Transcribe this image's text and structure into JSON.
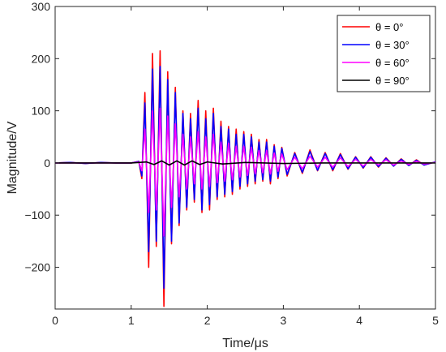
{
  "chart_data": {
    "type": "line",
    "title": "",
    "xlabel": "Time/μs",
    "ylabel": "Magnitude/V",
    "xlim": [
      0,
      5
    ],
    "ylim": [
      -280,
      300
    ],
    "xticks": [
      0,
      1,
      2,
      3,
      4,
      5
    ],
    "xtick_labels": [
      "0",
      "1",
      "2",
      "3",
      "4",
      "5"
    ],
    "yticks": [
      -200,
      -100,
      0,
      100,
      200,
      300
    ],
    "ytick_labels": [
      "−200",
      "−100",
      "0",
      "100",
      "200",
      "300"
    ],
    "grid": false,
    "legend_position": "top-right",
    "series": [
      {
        "name": "θ = 0°",
        "color": "#ff0000",
        "x": [
          0.0,
          0.2,
          0.4,
          0.6,
          0.8,
          1.0,
          1.1,
          1.14,
          1.18,
          1.23,
          1.28,
          1.33,
          1.38,
          1.43,
          1.48,
          1.53,
          1.58,
          1.63,
          1.68,
          1.73,
          1.78,
          1.83,
          1.88,
          1.93,
          1.98,
          2.03,
          2.08,
          2.13,
          2.18,
          2.23,
          2.28,
          2.33,
          2.38,
          2.43,
          2.48,
          2.53,
          2.58,
          2.63,
          2.68,
          2.73,
          2.78,
          2.83,
          2.88,
          2.93,
          2.98,
          3.05,
          3.15,
          3.25,
          3.35,
          3.45,
          3.55,
          3.65,
          3.75,
          3.85,
          3.95,
          4.05,
          4.15,
          4.25,
          4.35,
          4.45,
          4.55,
          4.65,
          4.75,
          4.85,
          5.0
        ],
        "y": [
          0,
          1,
          -1,
          1,
          0,
          0,
          3,
          -30,
          135,
          -200,
          210,
          -160,
          215,
          -275,
          175,
          -155,
          145,
          -120,
          100,
          -90,
          95,
          -75,
          120,
          -95,
          100,
          -90,
          105,
          -70,
          80,
          -65,
          70,
          -60,
          65,
          -50,
          60,
          -45,
          55,
          -40,
          45,
          -35,
          45,
          -40,
          35,
          -30,
          30,
          -25,
          20,
          -20,
          25,
          -15,
          20,
          -15,
          18,
          -12,
          12,
          -10,
          12,
          -8,
          10,
          -6,
          8,
          -5,
          6,
          -4,
          2
        ]
      },
      {
        "name": "θ = 30°",
        "color": "#0000ff",
        "x": [
          0.0,
          0.2,
          0.4,
          0.6,
          0.8,
          1.0,
          1.1,
          1.14,
          1.18,
          1.23,
          1.28,
          1.33,
          1.38,
          1.43,
          1.48,
          1.53,
          1.58,
          1.63,
          1.68,
          1.73,
          1.78,
          1.83,
          1.88,
          1.93,
          1.98,
          2.03,
          2.08,
          2.13,
          2.18,
          2.23,
          2.28,
          2.33,
          2.38,
          2.43,
          2.48,
          2.53,
          2.58,
          2.63,
          2.68,
          2.73,
          2.78,
          2.83,
          2.88,
          2.93,
          2.98,
          3.05,
          3.15,
          3.25,
          3.35,
          3.45,
          3.55,
          3.65,
          3.75,
          3.85,
          3.95,
          4.05,
          4.15,
          4.25,
          4.35,
          4.45,
          4.55,
          4.65,
          4.75,
          4.85,
          5.0
        ],
        "y": [
          0,
          1,
          -1,
          1,
          0,
          0,
          3,
          -25,
          115,
          -170,
          180,
          -150,
          185,
          -240,
          160,
          -150,
          135,
          -115,
          95,
          -85,
          85,
          -70,
          105,
          -90,
          85,
          -80,
          95,
          -65,
          70,
          -60,
          65,
          -55,
          55,
          -45,
          55,
          -40,
          50,
          -35,
          40,
          -32,
          40,
          -35,
          32,
          -27,
          28,
          -22,
          18,
          -18,
          22,
          -14,
          18,
          -13,
          16,
          -11,
          11,
          -9,
          11,
          -7,
          9,
          -6,
          7,
          -5,
          5,
          -4,
          2
        ]
      },
      {
        "name": "θ = 60°",
        "color": "#ff00ff",
        "x": [
          0.0,
          0.2,
          0.4,
          0.6,
          0.8,
          1.0,
          1.1,
          1.14,
          1.18,
          1.23,
          1.28,
          1.33,
          1.38,
          1.43,
          1.48,
          1.53,
          1.58,
          1.63,
          1.68,
          1.73,
          1.78,
          1.83,
          1.88,
          1.93,
          1.98,
          2.03,
          2.08,
          2.13,
          2.18,
          2.23,
          2.28,
          2.33,
          2.38,
          2.43,
          2.48,
          2.53,
          2.58,
          2.63,
          2.68,
          2.73,
          2.78,
          2.83,
          2.88,
          2.93,
          2.98,
          3.05,
          3.15,
          3.25,
          3.35,
          3.45,
          3.55,
          3.65,
          3.75,
          3.85,
          3.95,
          4.05,
          4.15,
          4.25,
          4.35,
          4.45,
          4.55,
          4.65,
          4.75,
          4.85,
          5.0
        ],
        "y": [
          0,
          0,
          0,
          0,
          0,
          0,
          2,
          -15,
          65,
          -95,
          100,
          -90,
          105,
          -140,
          90,
          -85,
          75,
          -65,
          55,
          -50,
          50,
          -40,
          60,
          -50,
          50,
          -45,
          55,
          -38,
          40,
          -35,
          38,
          -32,
          32,
          -27,
          32,
          -24,
          30,
          -21,
          24,
          -19,
          24,
          -21,
          19,
          -16,
          17,
          -13,
          11,
          -11,
          13,
          -8,
          11,
          -8,
          10,
          -7,
          7,
          -6,
          7,
          -4,
          6,
          -4,
          4,
          -3,
          3,
          -2,
          1
        ]
      },
      {
        "name": "θ = 90°",
        "color": "#000000",
        "x": [
          0.0,
          0.5,
          1.0,
          1.2,
          1.3,
          1.4,
          1.5,
          1.6,
          1.7,
          1.8,
          1.9,
          2.0,
          2.2,
          2.5,
          3.0,
          3.5,
          4.0,
          4.5,
          5.0
        ],
        "y": [
          0,
          0,
          0,
          2,
          -3,
          4,
          -4,
          4,
          -4,
          4,
          -3,
          2,
          -2,
          1,
          -1,
          0,
          0,
          0,
          0
        ]
      }
    ]
  }
}
